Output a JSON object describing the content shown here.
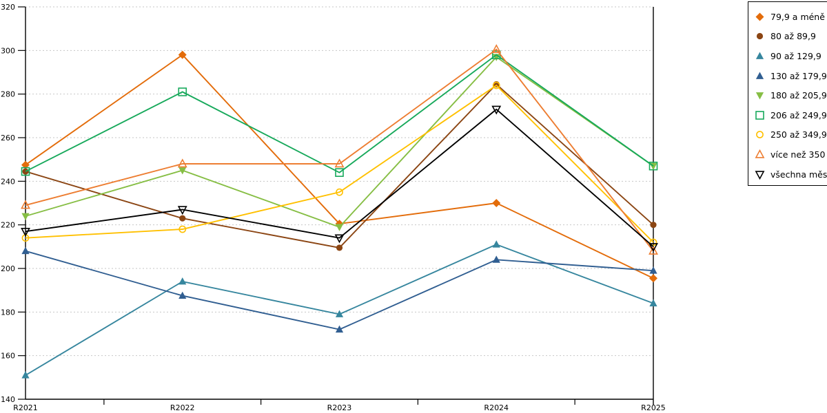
{
  "chart_data": {
    "type": "line",
    "title": "",
    "xlabel": "",
    "ylabel": "",
    "categories": [
      "R2021",
      "R2022",
      "R2023",
      "R2024",
      "R2025"
    ],
    "ylim": [
      140,
      320
    ],
    "ystep": 20,
    "grid": "horizontal-dashed",
    "legend_position": "right",
    "series": [
      {
        "name": "79,9 a méně",
        "marker": "diamond",
        "style": "filled",
        "color": "#E36C0A",
        "values": [
          247.5,
          298,
          220.5,
          230,
          195.5
        ]
      },
      {
        "name": "80 až 89,9",
        "marker": "circle",
        "style": "filled",
        "color": "#8B4513",
        "values": [
          244.5,
          223,
          209.5,
          284.5,
          220
        ]
      },
      {
        "name": "90 až 129,9",
        "marker": "triangle-up",
        "style": "filled",
        "color": "#36869E",
        "values": [
          151,
          194,
          179,
          211,
          184
        ]
      },
      {
        "name": "130 až 179,9",
        "marker": "triangle-up",
        "style": "filled",
        "color": "#305E91",
        "values": [
          208,
          187.5,
          172,
          204,
          199
        ]
      },
      {
        "name": "180 až 205,9",
        "marker": "triangle-down",
        "style": "filled",
        "color": "#86BE44",
        "values": [
          224,
          245,
          219,
          297,
          247
        ]
      },
      {
        "name": "206 až 249,9",
        "marker": "square",
        "style": "open",
        "color": "#17A95B",
        "values": [
          244.5,
          281,
          244,
          298,
          247
        ]
      },
      {
        "name": "250 až 349,9",
        "marker": "circle",
        "style": "open",
        "color": "#FFC000",
        "values": [
          214,
          218,
          235,
          284,
          212
        ]
      },
      {
        "name": "více než 350",
        "marker": "triangle-up",
        "style": "open",
        "color": "#ED7D31",
        "values": [
          229,
          248,
          248,
          300.5,
          208
        ]
      },
      {
        "name": "všechna města",
        "marker": "triangle-down",
        "style": "open",
        "color": "#000000",
        "values": [
          217,
          227,
          214,
          273,
          210
        ]
      }
    ]
  },
  "colors": {
    "background": "#FFFFFF",
    "gridline": "#C6C6C6",
    "axis": "#000000"
  }
}
